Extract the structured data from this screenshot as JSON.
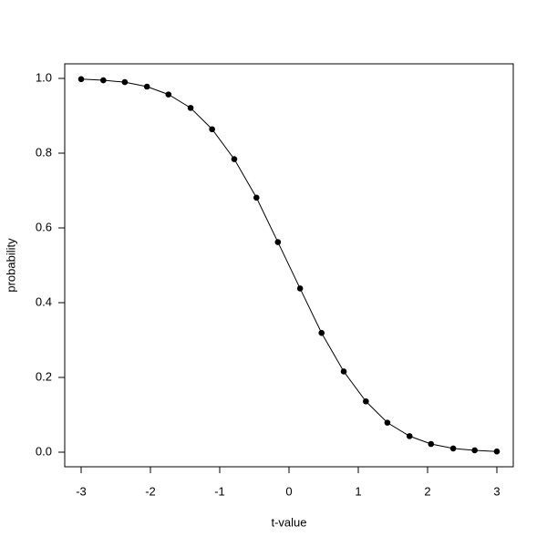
{
  "chart_data": {
    "type": "line",
    "x_label": "t-value",
    "y_label": "probability",
    "x": [
      -3,
      -2.68,
      -2.37,
      -2.05,
      -1.74,
      -1.42,
      -1.11,
      -0.79,
      -0.47,
      -0.16,
      0.16,
      0.47,
      0.79,
      1.11,
      1.42,
      1.74,
      2.05,
      2.37,
      2.68,
      3
    ],
    "series": [
      {
        "color": "#000000",
        "values": [
          0.998,
          0.995,
          0.99,
          0.978,
          0.957,
          0.921,
          0.864,
          0.784,
          0.681,
          0.562,
          0.438,
          0.319,
          0.216,
          0.136,
          0.079,
          0.043,
          0.022,
          0.01,
          0.005,
          0.002
        ]
      }
    ],
    "xlim": [
      -3.237,
      3.237
    ],
    "ylim": [
      -0.039,
      1.039
    ],
    "xticks": [
      -3,
      -2,
      -1,
      0,
      1,
      2,
      3
    ],
    "yticks": [
      {
        "value": 0,
        "label": "0.0"
      },
      0.2,
      0.4,
      0.6,
      0.8,
      {
        "value": 1,
        "label": "1.0"
      }
    ],
    "markers": true
  }
}
